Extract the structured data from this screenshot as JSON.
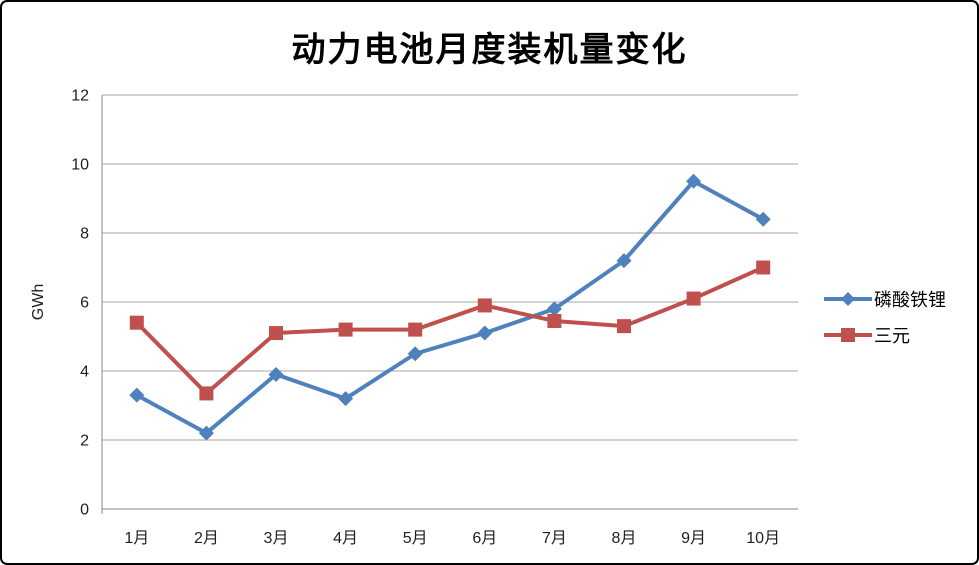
{
  "frame": {
    "background": "#FFFFFF",
    "border_color": "#000000"
  },
  "chart_data": {
    "type": "line",
    "title": "动力电池月度装机量变化",
    "xlabel": "",
    "ylabel": "GWh",
    "categories": [
      "1月",
      "2月",
      "3月",
      "4月",
      "5月",
      "6月",
      "7月",
      "8月",
      "9月",
      "10月"
    ],
    "series": [
      {
        "name": "磷酸铁锂",
        "color": "#4F81BD",
        "marker": "diamond",
        "values": [
          3.3,
          2.2,
          3.9,
          3.2,
          4.5,
          5.1,
          5.8,
          7.2,
          9.5,
          8.4
        ]
      },
      {
        "name": "三元",
        "color": "#C0504D",
        "marker": "square",
        "values": [
          5.4,
          3.35,
          5.1,
          5.2,
          5.2,
          5.9,
          5.45,
          5.3,
          6.1,
          7.0
        ]
      }
    ],
    "ylim": [
      0,
      12
    ],
    "ytick_step": 2,
    "yticks": [
      "0",
      "2",
      "4",
      "6",
      "8",
      "10",
      "12"
    ],
    "grid": true,
    "gridline_color": "#A6A6A6",
    "axis_color": "#898989",
    "tick_label_color": "#1f1f1f",
    "legend_position": "right"
  }
}
